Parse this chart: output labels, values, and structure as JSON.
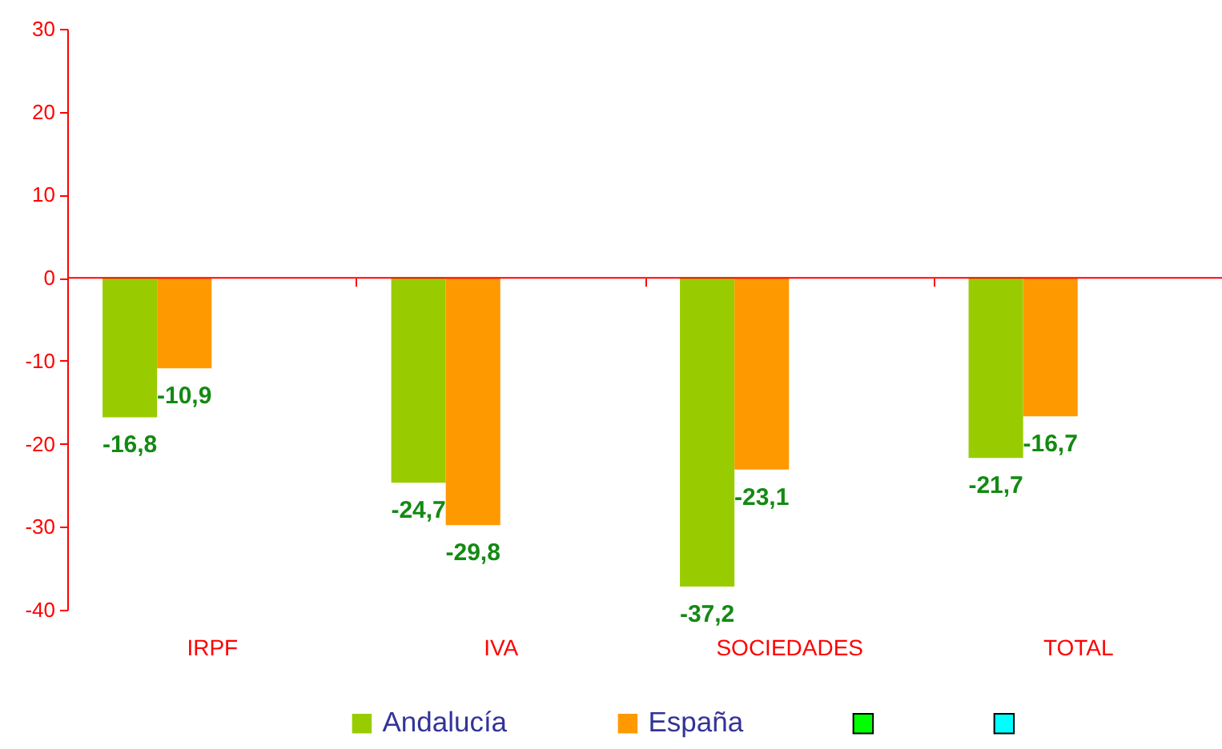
{
  "chart_data": {
    "type": "bar",
    "categories": [
      "IRPF",
      "IVA",
      "SOCIEDADES",
      "TOTAL"
    ],
    "series": [
      {
        "name": "Andalucía",
        "color": "#99cc00",
        "values": [
          -16.8,
          -24.7,
          -37.2,
          -21.7
        ],
        "value_labels": [
          "-16,8",
          "-24,7",
          "-37,2",
          "-21,7"
        ]
      },
      {
        "name": "España",
        "color": "#ff9900",
        "values": [
          -10.9,
          -29.8,
          -23.1,
          -16.7
        ],
        "value_labels": [
          "-10,9",
          "-29,8",
          "-23,1",
          "-16,7"
        ]
      },
      {
        "color": "#00ff00",
        "values": [
          null,
          null,
          null,
          null
        ]
      },
      {
        "color": "#00ffff",
        "values": [
          null,
          null,
          null,
          null
        ]
      }
    ],
    "ylim": [
      -40,
      30
    ],
    "yticks": [
      -40,
      -30,
      -20,
      -10,
      0,
      10,
      20,
      30
    ],
    "ref_lines": [
      {
        "axis": "y",
        "value": 0,
        "color": "#ff0000"
      }
    ],
    "legend": "bottom"
  }
}
